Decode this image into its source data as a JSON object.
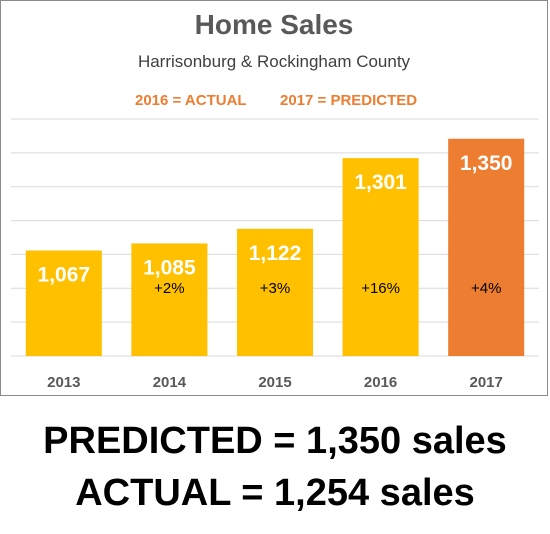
{
  "chart_data": {
    "type": "bar",
    "title": "Home Sales",
    "subtitle": "Harrisonburg & Rockingham County",
    "annotations": [
      "2016 = ACTUAL",
      "2017 = PREDICTED"
    ],
    "categories": [
      "2013",
      "2014",
      "2015",
      "2016",
      "2017"
    ],
    "values": [
      1067,
      1085,
      1122,
      1301,
      1350
    ],
    "value_labels": [
      "1,067",
      "1,085",
      "1,122",
      "1,301",
      "1,350"
    ],
    "change_labels": [
      "",
      "+2%",
      "+3%",
      "+16%",
      "+4%"
    ],
    "ylim": [
      800,
      1400
    ],
    "grid": true,
    "colors": {
      "actual": "#ffc000",
      "predicted": "#ed7d31",
      "bar_text": "#ffffff",
      "change_text": "#000000",
      "grid": "#d9d9d9",
      "tick_text": "#595959"
    },
    "predicted_index": 4
  },
  "footer": {
    "predicted_line": "PREDICTED = 1,350 sales",
    "actual_line": "ACTUAL = 1,254 sales"
  }
}
